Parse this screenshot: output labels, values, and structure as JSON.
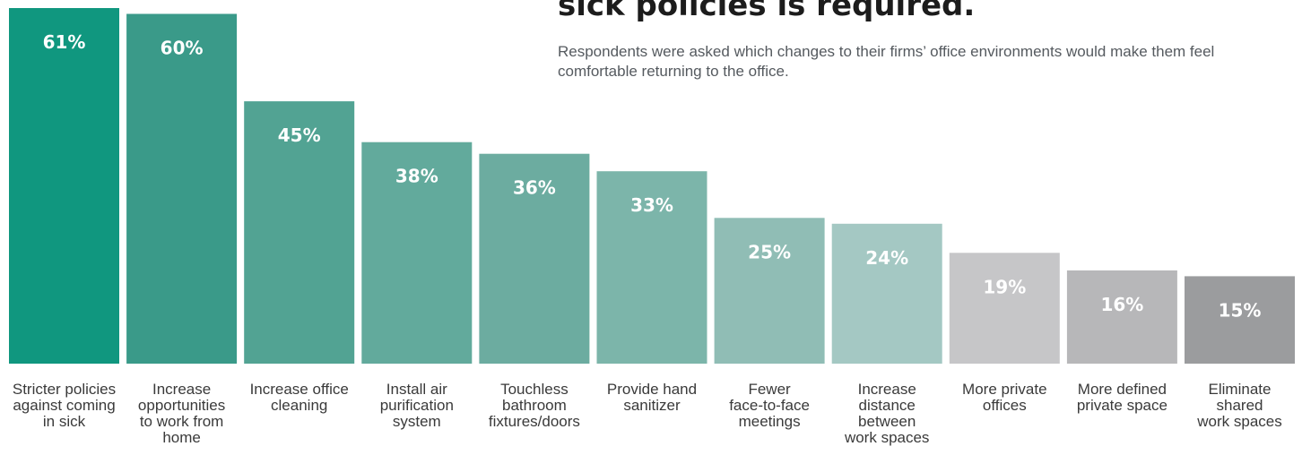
{
  "chart_data": {
    "type": "bar",
    "title": "sick policies is required.",
    "subtitle": "Respondents were asked which changes to their firms’ office environments would make them feel comfortable returning to the office.",
    "xlabel": "",
    "ylabel": "",
    "ylim": [
      0,
      61
    ],
    "grid": false,
    "categories": [
      [
        "Stricter policies",
        "against coming",
        "in sick"
      ],
      [
        "Increase",
        "opportunities",
        "to work from",
        "home"
      ],
      [
        "Increase office",
        "cleaning"
      ],
      [
        "Install air",
        "purification",
        "system"
      ],
      [
        "Touchless",
        "bathroom",
        "fixtures/doors"
      ],
      [
        "Provide hand",
        "sanitizer"
      ],
      [
        "Fewer",
        "face-to-face",
        "meetings"
      ],
      [
        "Increase",
        "distance",
        "between",
        "work spaces"
      ],
      [
        "More private",
        "offices"
      ],
      [
        "More defined",
        "private space"
      ],
      [
        "Eliminate",
        "shared",
        "work spaces"
      ]
    ],
    "values": [
      61,
      60,
      45,
      38,
      36,
      33,
      25,
      24,
      19,
      16,
      15
    ],
    "value_labels": [
      "61%",
      "60%",
      "45%",
      "38%",
      "36%",
      "33%",
      "25%",
      "24%",
      "19%",
      "16%",
      "15%"
    ],
    "colors": [
      "#10977f",
      "#3a9a89",
      "#52a393",
      "#62aa9c",
      "#6caca0",
      "#7cb5aa",
      "#90bdb5",
      "#a4c8c3",
      "#c6c6c8",
      "#b7b7b9",
      "#9b9c9e"
    ]
  }
}
